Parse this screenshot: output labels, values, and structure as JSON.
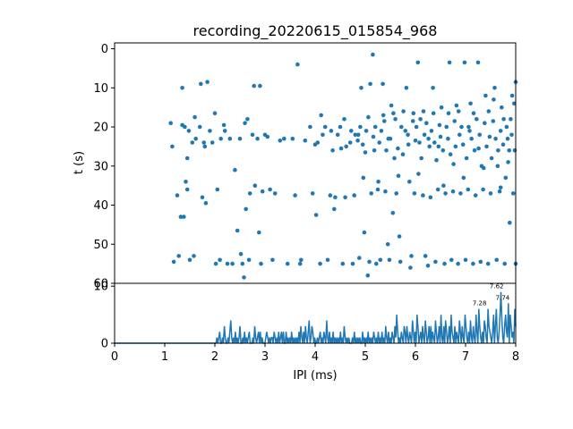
{
  "chart_data": [
    {
      "type": "scatter",
      "title": "recording_20220615_015854_968",
      "ylabel": "t (s)",
      "xlim": [
        0,
        8
      ],
      "ylim": [
        60,
        -1.5
      ],
      "y_inverted": true,
      "ytick_labels": [
        "0",
        "10",
        "20",
        "30",
        "40",
        "50",
        "60"
      ],
      "color": "#1f77b4",
      "points": [
        [
          1.12,
          19
        ],
        [
          1.15,
          25
        ],
        [
          1.18,
          54.5
        ],
        [
          1.25,
          37.5
        ],
        [
          1.28,
          53
        ],
        [
          1.32,
          43
        ],
        [
          1.35,
          10
        ],
        [
          1.38,
          43
        ],
        [
          1.35,
          19.5
        ],
        [
          1.42,
          34
        ],
        [
          1.4,
          20
        ],
        [
          1.45,
          28
        ],
        [
          1.45,
          36
        ],
        [
          1.48,
          21
        ],
        [
          1.5,
          54
        ],
        [
          1.55,
          24
        ],
        [
          1.58,
          53
        ],
        [
          1.6,
          17.5
        ],
        [
          1.62,
          23
        ],
        [
          1.7,
          20
        ],
        [
          1.72,
          9
        ],
        [
          1.75,
          38
        ],
        [
          1.78,
          24
        ],
        [
          1.8,
          25
        ],
        [
          1.82,
          39.5
        ],
        [
          1.85,
          8.5
        ],
        [
          1.9,
          21
        ],
        [
          1.95,
          24
        ],
        [
          2.0,
          16.5
        ],
        [
          2.02,
          55
        ],
        [
          2.05,
          36
        ],
        [
          2.1,
          54
        ],
        [
          2.12,
          23
        ],
        [
          2.18,
          19.5
        ],
        [
          2.2,
          21
        ],
        [
          2.25,
          55
        ],
        [
          2.3,
          23
        ],
        [
          2.35,
          55
        ],
        [
          2.4,
          31
        ],
        [
          2.45,
          46.5
        ],
        [
          2.5,
          23
        ],
        [
          2.52,
          52.5
        ],
        [
          2.55,
          55
        ],
        [
          2.58,
          58.5
        ],
        [
          2.6,
          19
        ],
        [
          2.62,
          41
        ],
        [
          2.65,
          18
        ],
        [
          2.68,
          54
        ],
        [
          2.7,
          37
        ],
        [
          2.75,
          22
        ],
        [
          2.78,
          9.5
        ],
        [
          2.8,
          35
        ],
        [
          2.85,
          23
        ],
        [
          2.88,
          47
        ],
        [
          2.9,
          9.5
        ],
        [
          2.92,
          55
        ],
        [
          2.95,
          36.5
        ],
        [
          3.0,
          22
        ],
        [
          3.05,
          22.5
        ],
        [
          3.1,
          36
        ],
        [
          3.15,
          54
        ],
        [
          3.2,
          37
        ],
        [
          3.3,
          23.5
        ],
        [
          3.38,
          23
        ],
        [
          3.45,
          55
        ],
        [
          3.55,
          23
        ],
        [
          3.6,
          37.5
        ],
        [
          3.65,
          4
        ],
        [
          3.7,
          55
        ],
        [
          3.72,
          54
        ],
        [
          3.8,
          23.5
        ],
        [
          3.9,
          20
        ],
        [
          3.95,
          37
        ],
        [
          4.0,
          24.5
        ],
        [
          4.02,
          42.5
        ],
        [
          4.05,
          24
        ],
        [
          4.1,
          55
        ],
        [
          4.12,
          17
        ],
        [
          4.15,
          22
        ],
        [
          4.2,
          20
        ],
        [
          4.25,
          54
        ],
        [
          4.3,
          37.5
        ],
        [
          4.32,
          21
        ],
        [
          4.35,
          26
        ],
        [
          4.38,
          41
        ],
        [
          4.4,
          38
        ],
        [
          4.45,
          22
        ],
        [
          4.5,
          20
        ],
        [
          4.52,
          25.5
        ],
        [
          4.55,
          55
        ],
        [
          4.58,
          18
        ],
        [
          4.6,
          38
        ],
        [
          4.62,
          25
        ],
        [
          4.7,
          24
        ],
        [
          4.72,
          21
        ],
        [
          4.75,
          55
        ],
        [
          4.78,
          37.5
        ],
        [
          4.8,
          22
        ],
        [
          4.85,
          23.5
        ],
        [
          4.88,
          53.5
        ],
        [
          4.9,
          20
        ],
        [
          4.92,
          10
        ],
        [
          4.95,
          24.5
        ],
        [
          4.98,
          47
        ],
        [
          5.0,
          26.5
        ],
        [
          5.02,
          21
        ],
        [
          5.05,
          58
        ],
        [
          5.08,
          54.5
        ],
        [
          5.1,
          9
        ],
        [
          5.12,
          37
        ],
        [
          5.15,
          1.5
        ],
        [
          5.18,
          26
        ],
        [
          5.2,
          20
        ],
        [
          5.22,
          55
        ],
        [
          5.25,
          36
        ],
        [
          5.28,
          24
        ],
        [
          5.3,
          54
        ],
        [
          5.32,
          21
        ],
        [
          5.35,
          9
        ],
        [
          5.38,
          18.5
        ],
        [
          5.4,
          36.5
        ],
        [
          5.42,
          26
        ],
        [
          5.45,
          50
        ],
        [
          5.48,
          54
        ],
        [
          5.5,
          23
        ],
        [
          5.52,
          14.5
        ],
        [
          5.55,
          42
        ],
        [
          5.58,
          28
        ],
        [
          5.6,
          18
        ],
        [
          5.62,
          37
        ],
        [
          5.65,
          25.5
        ],
        [
          5.68,
          48
        ],
        [
          5.7,
          54.5
        ],
        [
          5.72,
          20
        ],
        [
          5.75,
          27
        ],
        [
          5.8,
          21
        ],
        [
          5.82,
          10
        ],
        [
          5.85,
          22
        ],
        [
          5.88,
          34
        ],
        [
          5.9,
          56
        ],
        [
          5.92,
          53
        ],
        [
          5.95,
          18.5
        ],
        [
          5.98,
          37
        ],
        [
          6.0,
          23.5
        ],
        [
          6.02,
          20
        ],
        [
          6.05,
          3.5
        ],
        [
          6.08,
          24
        ],
        [
          6.1,
          18
        ],
        [
          6.12,
          28
        ],
        [
          6.15,
          37.5
        ],
        [
          6.18,
          22
        ],
        [
          6.2,
          53
        ],
        [
          6.22,
          19
        ],
        [
          6.25,
          55.5
        ],
        [
          6.28,
          25
        ],
        [
          6.3,
          38
        ],
        [
          6.32,
          21
        ],
        [
          6.35,
          10
        ],
        [
          6.38,
          24
        ],
        [
          6.4,
          54.5
        ],
        [
          6.42,
          28.5
        ],
        [
          6.45,
          36
        ],
        [
          6.48,
          19.5
        ],
        [
          6.5,
          22.5
        ],
        [
          6.52,
          15
        ],
        [
          6.55,
          26
        ],
        [
          6.58,
          55
        ],
        [
          6.6,
          37
        ],
        [
          6.62,
          20
        ],
        [
          6.65,
          23
        ],
        [
          6.68,
          3.5
        ],
        [
          6.7,
          27
        ],
        [
          6.72,
          54
        ],
        [
          6.75,
          36.5
        ],
        [
          6.78,
          18.5
        ],
        [
          6.8,
          25
        ],
        [
          6.82,
          14.5
        ],
        [
          6.85,
          55
        ],
        [
          6.88,
          22
        ],
        [
          6.9,
          37
        ],
        [
          6.92,
          20
        ],
        [
          6.95,
          24.5
        ],
        [
          6.98,
          3.5
        ],
        [
          7.0,
          54
        ],
        [
          7.02,
          28
        ],
        [
          7.05,
          36
        ],
        [
          7.08,
          21
        ],
        [
          7.1,
          14
        ],
        [
          7.12,
          23
        ],
        [
          7.15,
          55
        ],
        [
          7.18,
          26
        ],
        [
          7.2,
          37.5
        ],
        [
          7.22,
          18
        ],
        [
          7.25,
          3.5
        ],
        [
          7.28,
          22
        ],
        [
          7.3,
          54.5
        ],
        [
          7.32,
          30
        ],
        [
          7.35,
          36
        ],
        [
          7.38,
          19
        ],
        [
          7.4,
          12
        ],
        [
          7.42,
          25
        ],
        [
          7.45,
          55
        ],
        [
          7.48,
          22.5
        ],
        [
          7.5,
          37
        ],
        [
          7.52,
          28
        ],
        [
          7.55,
          18.5
        ],
        [
          7.58,
          10
        ],
        [
          7.6,
          23
        ],
        [
          7.62,
          54
        ],
        [
          7.65,
          26
        ],
        [
          7.68,
          36.5
        ],
        [
          7.7,
          21
        ],
        [
          7.72,
          15
        ],
        [
          7.75,
          24.5
        ],
        [
          7.78,
          55
        ],
        [
          7.8,
          33
        ],
        [
          7.82,
          20
        ],
        [
          7.85,
          29
        ],
        [
          7.88,
          44.5
        ],
        [
          7.9,
          18
        ],
        [
          7.92,
          22
        ],
        [
          7.95,
          37
        ],
        [
          7.98,
          26
        ],
        [
          8.0,
          8.5
        ],
        [
          8.0,
          55
        ],
        [
          7.97,
          14
        ],
        [
          7.93,
          12
        ],
        [
          7.87,
          26
        ],
        [
          7.84,
          23
        ],
        [
          7.76,
          18
        ],
        [
          7.7,
          35.5
        ],
        [
          7.64,
          30
        ],
        [
          7.56,
          13
        ],
        [
          7.46,
          16
        ],
        [
          7.36,
          30.5
        ],
        [
          7.26,
          25.5
        ],
        [
          7.16,
          16.5
        ],
        [
          7.06,
          20
        ],
        [
          6.96,
          33
        ],
        [
          6.86,
          16
        ],
        [
          6.76,
          29.5
        ],
        [
          6.66,
          16.5
        ],
        [
          6.56,
          35
        ],
        [
          6.46,
          25
        ],
        [
          6.36,
          16.5
        ],
        [
          6.26,
          23
        ],
        [
          6.16,
          16
        ],
        [
          6.06,
          32
        ],
        [
          5.96,
          16.5
        ],
        [
          5.86,
          24.5
        ],
        [
          5.76,
          16
        ],
        [
          5.66,
          32.5
        ],
        [
          5.56,
          16.5
        ],
        [
          5.46,
          23
        ],
        [
          5.36,
          17
        ],
        [
          5.26,
          34
        ],
        [
          5.16,
          22.5
        ],
        [
          5.06,
          17.5
        ],
        [
          4.96,
          33
        ],
        [
          4.86,
          22
        ]
      ]
    },
    {
      "type": "line",
      "xlabel": "IPI (ms)",
      "xlim": [
        0,
        8
      ],
      "ylim": [
        0,
        10.5
      ],
      "xtick_labels": [
        "0",
        "1",
        "2",
        "3",
        "4",
        "5",
        "6",
        "7",
        "8"
      ],
      "ytick_labels": [
        "0",
        "10"
      ],
      "color": "#1f77b4",
      "values": [
        0,
        0,
        0,
        0,
        0,
        0,
        0,
        0,
        0,
        0,
        0,
        0,
        0,
        0,
        0,
        0,
        0,
        0,
        0,
        0,
        0,
        0,
        0,
        0,
        0,
        0,
        0,
        0,
        0,
        0,
        0,
        0,
        0,
        0,
        0,
        0,
        0,
        0,
        0,
        0,
        0,
        0,
        0,
        0,
        0,
        0,
        0,
        0,
        0,
        0,
        0,
        0,
        0,
        0,
        0,
        0,
        0,
        0,
        0,
        0,
        0,
        0,
        0,
        0,
        0,
        0,
        0,
        0,
        0,
        0,
        0,
        0,
        0,
        0,
        0,
        0,
        0,
        0,
        0,
        0,
        0,
        0,
        0,
        0,
        0,
        0,
        0,
        0,
        0,
        0,
        0,
        0,
        0,
        0,
        0,
        0,
        0,
        0,
        0,
        0,
        0,
        0,
        0,
        0,
        0,
        0,
        0,
        0,
        0,
        0,
        0,
        1,
        0,
        1,
        2,
        0,
        0,
        1,
        0,
        3,
        1,
        0,
        0,
        1,
        0,
        2,
        4,
        1,
        0,
        1,
        0,
        2,
        0,
        1,
        0,
        1,
        3,
        0,
        0,
        1,
        0,
        2,
        0,
        1,
        0,
        1,
        2,
        0,
        0,
        0,
        1,
        0,
        3,
        1,
        0,
        1,
        2,
        0,
        2,
        0,
        1,
        0,
        0,
        0,
        1,
        2,
        1,
        0,
        1,
        0,
        1,
        1,
        0,
        2,
        1,
        0,
        1,
        0,
        2,
        0,
        1,
        2,
        0,
        2,
        0,
        0,
        2,
        0,
        1,
        0,
        1,
        0,
        2,
        0,
        1,
        0,
        1,
        0,
        1,
        0,
        2,
        0,
        3,
        1,
        0,
        2,
        0,
        3,
        1,
        0,
        2,
        4,
        0,
        1,
        3,
        2,
        0,
        1,
        0,
        0,
        1,
        0,
        1,
        2,
        0,
        1,
        0,
        2,
        1,
        0,
        4,
        1,
        0,
        2,
        0,
        1,
        0,
        2,
        0,
        1,
        0,
        1,
        0,
        1,
        0,
        2,
        0,
        1,
        0,
        3,
        1,
        0,
        1,
        0,
        1,
        0,
        0,
        0,
        1,
        0,
        2,
        0,
        1,
        0,
        1,
        0,
        1,
        0,
        0,
        2,
        0,
        1,
        0,
        1,
        0,
        2,
        0,
        1,
        0,
        1,
        0,
        2,
        1,
        0,
        1,
        0,
        2,
        0,
        1,
        0,
        2,
        0,
        1,
        0,
        3,
        1,
        0,
        2,
        0,
        1,
        0,
        2,
        1,
        0,
        3,
        1,
        5,
        2,
        0,
        1,
        0,
        2,
        1,
        0,
        3,
        2,
        0,
        3,
        1,
        0,
        2,
        1,
        0,
        4,
        2,
        0,
        2,
        0,
        5,
        3,
        0,
        1,
        2,
        0,
        3,
        1,
        0,
        4,
        2,
        0,
        1,
        3,
        0,
        3,
        0,
        2,
        1,
        0,
        4,
        2,
        0,
        1,
        3,
        0,
        5,
        1,
        0,
        3,
        0,
        4,
        2,
        0,
        1,
        3,
        0,
        5,
        2,
        1,
        0,
        3,
        0,
        2,
        1,
        0,
        4,
        2,
        0,
        3,
        1,
        0,
        5,
        3,
        1,
        0,
        2,
        0,
        4,
        1,
        0,
        3,
        1,
        0,
        5,
        2,
        0,
        6,
        3,
        1,
        0,
        2,
        0,
        4,
        3,
        1,
        0,
        6,
        3,
        2,
        1,
        0,
        2,
        5,
        0,
        3,
        6,
        1,
        0,
        2,
        5,
        9,
        4,
        1,
        0,
        3,
        5,
        2,
        1,
        7,
        0,
        5,
        3,
        1,
        2,
        0,
        6,
        3
      ],
      "peak_labels": [
        {
          "x": 7.28,
          "y": 6,
          "text": "7.28"
        },
        {
          "x": 7.62,
          "y": 9,
          "text": "7.62"
        },
        {
          "x": 7.74,
          "y": 7,
          "text": "7.74"
        }
      ]
    }
  ]
}
